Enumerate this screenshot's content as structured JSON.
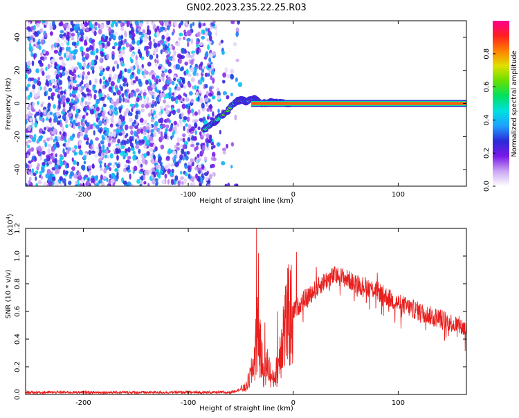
{
  "title": "GN02.2023.235.22.25.R03",
  "chart_data": [
    {
      "type": "heatmap",
      "xlabel": "Height of straight line (km)",
      "ylabel": "Frequency (Hz)",
      "xlim": [
        -255,
        165
      ],
      "ylim": [
        -50,
        50
      ],
      "xticks": [
        -200,
        -100,
        0,
        100
      ],
      "yticks": [
        -40,
        -20,
        0,
        20,
        40
      ],
      "colorbar": {
        "label": "Normalized spectral amplitude",
        "range": [
          0,
          1
        ],
        "ticks": [
          "0.0",
          "0.2",
          "0.4",
          "0.6",
          "0.8"
        ],
        "colors": [
          "#ffffff",
          "#c9a6f2",
          "#7a18e8",
          "#2a2ad8",
          "#1e9fff",
          "#00e0e0",
          "#00e060",
          "#66e000",
          "#e0e000",
          "#ff8000",
          "#ff2020",
          "#ff0090"
        ]
      },
      "features": {
        "noise_region_x": [
          -255,
          -75
        ],
        "noise_level": 0.3,
        "tone_line": {
          "x": [
            -40,
            165
          ],
          "y": 0,
          "level": 0.85
        },
        "ramp": [
          [
            -85,
            -16
          ],
          [
            -75,
            -11
          ],
          [
            -65,
            -6
          ],
          [
            -55,
            1
          ],
          [
            -50,
            2
          ],
          [
            -45,
            1
          ],
          [
            -38,
            3
          ],
          [
            -30,
            0
          ],
          [
            -20,
            1
          ],
          [
            -10,
            0
          ],
          [
            0,
            0
          ]
        ]
      }
    },
    {
      "type": "line",
      "xlabel": "Height of straight line (km)",
      "ylabel": "SNR (10 * v/v)",
      "yscale_label": "(x10",
      "yscale_exp": "4",
      "xlim": [
        -255,
        165
      ],
      "ylim": [
        0,
        12000
      ],
      "xticks": [
        -200,
        -100,
        0,
        100
      ],
      "yticks": [
        "0.0",
        "0.2",
        "0.4",
        "0.6",
        "0.8",
        "1.0",
        "1.2"
      ],
      "ytick_values": [
        0,
        2000,
        4000,
        6000,
        8000,
        10000,
        12000
      ],
      "color": "#e8201e",
      "envelope": [
        [
          -255,
          150
        ],
        [
          -60,
          150
        ],
        [
          -45,
          500
        ],
        [
          -40,
          1500
        ],
        [
          -36,
          3000
        ],
        [
          -34,
          5000
        ],
        [
          -32,
          3500
        ],
        [
          -28,
          1500
        ],
        [
          -24,
          2200
        ],
        [
          -20,
          1000
        ],
        [
          -15,
          1800
        ],
        [
          -10,
          4500
        ],
        [
          -5,
          5500
        ],
        [
          0,
          6000
        ],
        [
          10,
          6800
        ],
        [
          20,
          7500
        ],
        [
          30,
          8200
        ],
        [
          40,
          8600
        ],
        [
          50,
          8400
        ],
        [
          60,
          8000
        ],
        [
          70,
          7800
        ],
        [
          80,
          7500
        ],
        [
          90,
          7000
        ],
        [
          100,
          6600
        ],
        [
          110,
          6300
        ],
        [
          120,
          6000
        ],
        [
          130,
          5700
        ],
        [
          140,
          5500
        ],
        [
          150,
          5200
        ],
        [
          160,
          4900
        ],
        [
          165,
          4700
        ]
      ],
      "peaks": [
        [
          -35,
          12000
        ],
        [
          -33,
          10200
        ],
        [
          -27,
          5200
        ],
        [
          -15,
          6000
        ],
        [
          -8,
          7200
        ],
        [
          3,
          10300
        ],
        [
          22,
          9200
        ],
        [
          63,
          8100
        ],
        [
          80,
          8800
        ]
      ]
    }
  ]
}
